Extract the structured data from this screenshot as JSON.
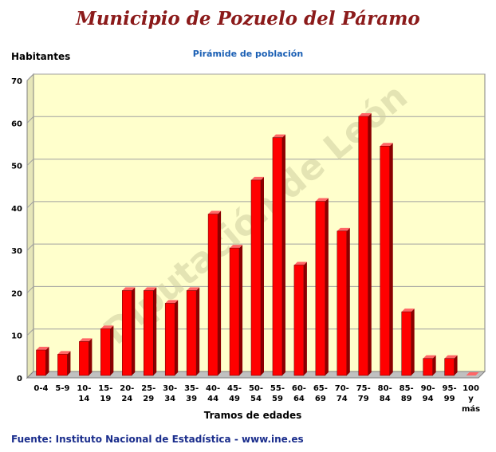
{
  "header": {
    "title": "Municipio de Pozuelo del Páramo",
    "source": "Fuente: Instituto Nacional de Estadística - www.ine.es"
  },
  "watermark": "Diputación de León",
  "colors": {
    "plot_background": "#ffffcc",
    "bar_front": "#ff0000",
    "bar_side": "#8b0000",
    "bar_top": "#ff6666",
    "title": "#8b1a1a",
    "chart_title": "#1a5fb4",
    "source": "#1a2d8c"
  },
  "chart_data": {
    "type": "bar",
    "title": "Pirámide de población",
    "ylabel": "Habitantes",
    "xlabel": "Tramos de edades",
    "ylim": [
      0,
      70
    ],
    "yticks": [
      0,
      10,
      20,
      30,
      40,
      50,
      60,
      70
    ],
    "grid": true,
    "categories": [
      "0-4",
      "5-9",
      "10-14",
      "15-19",
      "20-24",
      "25-29",
      "30-34",
      "35-39",
      "40-44",
      "45-49",
      "50-54",
      "55-59",
      "60-64",
      "65-69",
      "70-74",
      "75-79",
      "80-84",
      "85-89",
      "90-94",
      "95-99",
      "100 y más"
    ],
    "category_lines": [
      [
        "0-4"
      ],
      [
        "5-9"
      ],
      [
        "10-",
        "14"
      ],
      [
        "15-",
        "19"
      ],
      [
        "20-",
        "24"
      ],
      [
        "25-",
        "29"
      ],
      [
        "30-",
        "34"
      ],
      [
        "35-",
        "39"
      ],
      [
        "40-",
        "44"
      ],
      [
        "45-",
        "49"
      ],
      [
        "50-",
        "54"
      ],
      [
        "55-",
        "59"
      ],
      [
        "60-",
        "64"
      ],
      [
        "65-",
        "69"
      ],
      [
        "70-",
        "74"
      ],
      [
        "75-",
        "79"
      ],
      [
        "80-",
        "84"
      ],
      [
        "85-",
        "89"
      ],
      [
        "90-",
        "94"
      ],
      [
        "95-",
        "99"
      ],
      [
        "100",
        "y",
        "más"
      ]
    ],
    "values": [
      6,
      5,
      8,
      11,
      20,
      20,
      17,
      20,
      38,
      30,
      46,
      56,
      26,
      41,
      34,
      61,
      54,
      15,
      4,
      4,
      0
    ]
  }
}
